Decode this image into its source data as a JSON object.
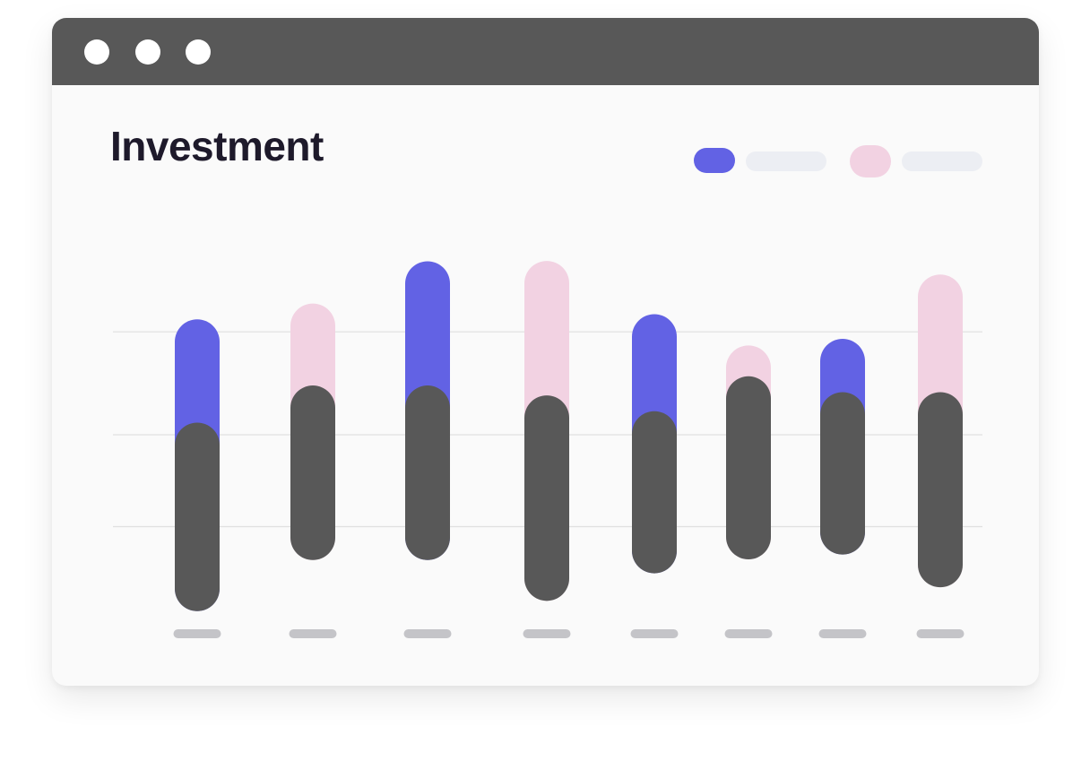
{
  "window": {
    "dots": [
      "close-dot",
      "minimize-dot",
      "maximize-dot"
    ]
  },
  "colors": {
    "titlebar": "#585858",
    "series_a": "#6262e4",
    "series_b": "#f2d2e2",
    "base": "#585858",
    "tick": "#c4c4c8",
    "grid": "#e0e0e0",
    "legend_line": "#eceef3"
  },
  "chart_data": {
    "type": "bar",
    "title": "Investment",
    "legend_placement": "top-right",
    "legend": [
      {
        "color": "#6262e4",
        "label": ""
      },
      {
        "color": "#f2d2e2",
        "label": ""
      }
    ],
    "categories": [
      "",
      "",
      "",
      "",
      "",
      "",
      "",
      ""
    ],
    "ylim": [
      0,
      100
    ],
    "grid": true,
    "gridlines": [
      25,
      50,
      78
    ],
    "bars": [
      {
        "color": "#6262e4",
        "top": 81.4,
        "overlay_top": 53.3,
        "bottom": 2.0
      },
      {
        "color": "#f2d2e2",
        "top": 85.7,
        "overlay_top": 63.4,
        "bottom": 15.9
      },
      {
        "color": "#6262e4",
        "top": 97.2,
        "overlay_top": 63.4,
        "bottom": 15.9
      },
      {
        "color": "#f2d2e2",
        "top": 97.3,
        "overlay_top": 60.7,
        "bottom": 4.8
      },
      {
        "color": "#6262e4",
        "top": 82.8,
        "overlay_top": 56.4,
        "bottom": 12.3
      },
      {
        "color": "#f2d2e2",
        "top": 74.3,
        "overlay_top": 65.9,
        "bottom": 16.1
      },
      {
        "color": "#6262e4",
        "top": 76.1,
        "overlay_top": 61.6,
        "bottom": 17.4
      },
      {
        "color": "#f2d2e2",
        "top": 93.6,
        "overlay_top": 61.6,
        "bottom": 8.5
      }
    ]
  }
}
